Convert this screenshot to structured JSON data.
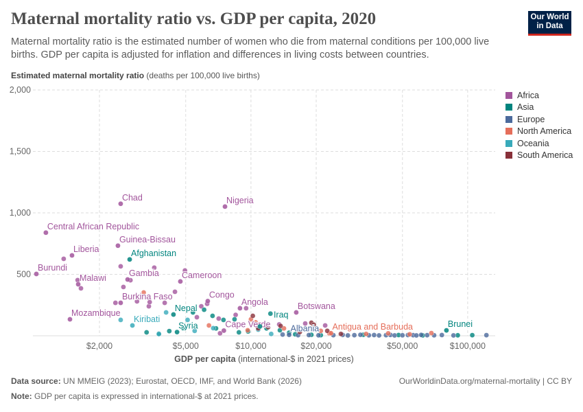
{
  "header": {
    "title": "Maternal mortality ratio vs. GDP per capita, 2020",
    "subtitle": "Maternal mortality ratio is the estimated number of women who die from maternal conditions per 100,000 live births. GDP per capita is adjusted for inflation and differences in living costs between countries.",
    "logo_line1": "Our World",
    "logo_line2": "in Data"
  },
  "footer": {
    "source_label": "Data source:",
    "source": "UN MMEIG (2023); Eurostat, OECD, IMF, and World Bank (2026)",
    "url": "OurWorldinData.org/maternal-mortality | CC BY",
    "note_label": "Note:",
    "note": "GDP per capita is expressed in international-$ at 2021 prices."
  },
  "chart_data": {
    "type": "scatter",
    "title": "Maternal mortality ratio vs. GDP per capita, 2020",
    "ylabel": "Estimated maternal mortality ratio",
    "ylabel_unit": "(deaths per 100,000 live births)",
    "xlabel": "GDP per capita",
    "xlabel_unit": "(international-$ in 2021 prices)",
    "xscale": "log",
    "xlim": [
      1000,
      130000
    ],
    "ylim": [
      0,
      2000
    ],
    "xticks": [
      {
        "v": 2000,
        "label": "$2,000"
      },
      {
        "v": 5000,
        "label": "$5,000"
      },
      {
        "v": 10000,
        "label": "$10,000"
      },
      {
        "v": 20000,
        "label": "$20,000"
      },
      {
        "v": 50000,
        "label": "$50,000"
      },
      {
        "v": 100000,
        "label": "$100,000"
      }
    ],
    "yticks": [
      {
        "v": 0,
        "label": ""
      },
      {
        "v": 500,
        "label": "500"
      },
      {
        "v": 1000,
        "label": "1,000"
      },
      {
        "v": 1500,
        "label": "1,500"
      },
      {
        "v": 2000,
        "label": "2,000"
      }
    ],
    "grid": true,
    "legend_position": "right",
    "regions": [
      {
        "name": "Africa",
        "color": "#a2559c"
      },
      {
        "name": "Asia",
        "color": "#00847e"
      },
      {
        "name": "Europe",
        "color": "#4c6a9c"
      },
      {
        "name": "North America",
        "color": "#e56e5a"
      },
      {
        "name": "Oceania",
        "color": "#38aaba"
      },
      {
        "name": "South America",
        "color": "#883039"
      }
    ],
    "labeled_points": [
      {
        "label": "Chad",
        "x": 2506,
        "y": 1074,
        "region": "Africa"
      },
      {
        "label": "Nigeria",
        "x": 7590,
        "y": 1051,
        "region": "Africa"
      },
      {
        "label": "Central African Republic",
        "x": 1132,
        "y": 839,
        "region": "Africa"
      },
      {
        "label": "Guinea-Bissau",
        "x": 2434,
        "y": 733,
        "region": "Africa"
      },
      {
        "label": "Liberia",
        "x": 1494,
        "y": 654,
        "region": "Africa"
      },
      {
        "label": "Afghanistan",
        "x": 2757,
        "y": 621,
        "region": "Asia"
      },
      {
        "label": "Burundi",
        "x": 1023,
        "y": 503,
        "region": "Africa"
      },
      {
        "label": "Gambia",
        "x": 2697,
        "y": 458,
        "region": "Africa"
      },
      {
        "label": "Cameroon",
        "x": 4724,
        "y": 442,
        "region": "Africa"
      },
      {
        "label": "Malawi",
        "x": 1596,
        "y": 419,
        "region": "Africa"
      },
      {
        "label": "Burkina Faso",
        "x": 2506,
        "y": 268,
        "region": "Africa"
      },
      {
        "label": "Congo",
        "x": 6320,
        "y": 282,
        "region": "Africa"
      },
      {
        "label": "Angola",
        "x": 8900,
        "y": 224,
        "region": "Africa"
      },
      {
        "label": "Botswana",
        "x": 16180,
        "y": 190,
        "region": "Africa"
      },
      {
        "label": "Mozambique",
        "x": 1462,
        "y": 134,
        "region": "Africa"
      },
      {
        "label": "Kiribati",
        "x": 2838,
        "y": 84,
        "region": "Oceania"
      },
      {
        "label": "Nepal",
        "x": 4390,
        "y": 173,
        "region": "Asia"
      },
      {
        "label": "Syria",
        "x": 4560,
        "y": 30,
        "region": "Asia"
      },
      {
        "label": "Cape Verde",
        "x": 7500,
        "y": 42,
        "region": "Africa"
      },
      {
        "label": "Iraq",
        "x": 11000,
        "y": 76,
        "region": "Asia"
      },
      {
        "label": "Albania",
        "x": 15000,
        "y": 8,
        "region": "Europe"
      },
      {
        "label": "Antigua and Barbuda",
        "x": 23400,
        "y": 21,
        "region": "North America"
      },
      {
        "label": "Brunei",
        "x": 79800,
        "y": 44,
        "region": "Asia"
      }
    ],
    "points": [
      [
        1368,
        626,
        "Africa"
      ],
      [
        1586,
        453,
        "Africa"
      ],
      [
        1643,
        386,
        "Africa"
      ],
      [
        2506,
        565,
        "Africa"
      ],
      [
        3580,
        554,
        "Africa"
      ],
      [
        4960,
        531,
        "Africa"
      ],
      [
        4460,
        358,
        "Africa"
      ],
      [
        2780,
        452,
        "Africa"
      ],
      [
        2580,
        397,
        "Africa"
      ],
      [
        3380,
        240,
        "Africa"
      ],
      [
        3410,
        274,
        "Africa"
      ],
      [
        4000,
        268,
        "Africa"
      ],
      [
        2370,
        268,
        "Africa"
      ],
      [
        2980,
        280,
        "Africa"
      ],
      [
        6280,
        260,
        "Africa"
      ],
      [
        5630,
        151,
        "Africa"
      ],
      [
        5900,
        240,
        "Africa"
      ],
      [
        9500,
        224,
        "Africa"
      ],
      [
        8500,
        170,
        "Africa"
      ],
      [
        7100,
        140,
        "Africa"
      ],
      [
        17800,
        100,
        "Africa"
      ],
      [
        22000,
        84,
        "Africa"
      ],
      [
        7200,
        20,
        "Africa"
      ],
      [
        13500,
        92,
        "Africa"
      ],
      [
        6080,
        212,
        "Asia"
      ],
      [
        6650,
        162,
        "Asia"
      ],
      [
        5400,
        190,
        "Asia"
      ],
      [
        7470,
        129,
        "Asia"
      ],
      [
        8400,
        134,
        "Asia"
      ],
      [
        6900,
        60,
        "Asia"
      ],
      [
        3760,
        17,
        "Asia"
      ],
      [
        4870,
        62,
        "Asia"
      ],
      [
        8800,
        28,
        "Asia"
      ],
      [
        9700,
        35,
        "Asia"
      ],
      [
        12300,
        180,
        "Asia"
      ],
      [
        11800,
        60,
        "Asia"
      ],
      [
        13600,
        45,
        "Asia"
      ],
      [
        15000,
        25,
        "Asia"
      ],
      [
        16000,
        12,
        "Asia"
      ],
      [
        19000,
        8,
        "Asia"
      ],
      [
        21000,
        5,
        "Asia"
      ],
      [
        33000,
        8,
        "Asia"
      ],
      [
        48000,
        6,
        "Asia"
      ],
      [
        62000,
        3,
        "Asia"
      ],
      [
        105000,
        5,
        "Asia"
      ],
      [
        90000,
        4,
        "Asia"
      ],
      [
        4200,
        38,
        "Asia"
      ],
      [
        3300,
        28,
        "Asia"
      ],
      [
        14000,
        10,
        "Europe"
      ],
      [
        16500,
        5,
        "Europe"
      ],
      [
        18500,
        6,
        "Europe"
      ],
      [
        20500,
        4,
        "Europe"
      ],
      [
        24000,
        5,
        "Europe"
      ],
      [
        26500,
        7,
        "Europe"
      ],
      [
        28000,
        3,
        "Europe"
      ],
      [
        30000,
        5,
        "Europe"
      ],
      [
        32000,
        8,
        "Europe"
      ],
      [
        35000,
        4,
        "Europe"
      ],
      [
        37000,
        6,
        "Europe"
      ],
      [
        39000,
        3,
        "Europe"
      ],
      [
        42000,
        5,
        "Europe"
      ],
      [
        44000,
        7,
        "Europe"
      ],
      [
        46000,
        3,
        "Europe"
      ],
      [
        50000,
        4,
        "Europe"
      ],
      [
        53000,
        6,
        "Europe"
      ],
      [
        56000,
        5,
        "Europe"
      ],
      [
        58000,
        3,
        "Europe"
      ],
      [
        61000,
        7,
        "Europe"
      ],
      [
        65000,
        5,
        "Europe"
      ],
      [
        70000,
        4,
        "Europe"
      ],
      [
        76000,
        6,
        "Europe"
      ],
      [
        86000,
        3,
        "Europe"
      ],
      [
        122000,
        5,
        "Europe"
      ],
      [
        3200,
        352,
        "North America"
      ],
      [
        6400,
        84,
        "North America"
      ],
      [
        9660,
        45,
        "North America"
      ],
      [
        10000,
        134,
        "North America"
      ],
      [
        10500,
        110,
        "North America"
      ],
      [
        14200,
        60,
        "North America"
      ],
      [
        21000,
        40,
        "North America"
      ],
      [
        23000,
        20,
        "North America"
      ],
      [
        34000,
        15,
        "North America"
      ],
      [
        43000,
        20,
        "North America"
      ],
      [
        54000,
        12,
        "North America"
      ],
      [
        68000,
        22,
        "North America"
      ],
      [
        2506,
        129,
        "Oceania"
      ],
      [
        3760,
        14,
        "Oceania"
      ],
      [
        4060,
        190,
        "Oceania"
      ],
      [
        5100,
        129,
        "Oceania"
      ],
      [
        5500,
        40,
        "Oceania"
      ],
      [
        6700,
        62,
        "Oceania"
      ],
      [
        10800,
        50,
        "Oceania"
      ],
      [
        12400,
        15,
        "Oceania"
      ],
      [
        10200,
        162,
        "South America"
      ],
      [
        12000,
        70,
        "South America"
      ],
      [
        13700,
        80,
        "South America"
      ],
      [
        19000,
        106,
        "South America"
      ],
      [
        19500,
        90,
        "South America"
      ],
      [
        16800,
        30,
        "South America"
      ],
      [
        10800,
        60,
        "South America"
      ],
      [
        26000,
        15,
        "South America"
      ],
      [
        22500,
        40,
        "South America"
      ]
    ]
  }
}
